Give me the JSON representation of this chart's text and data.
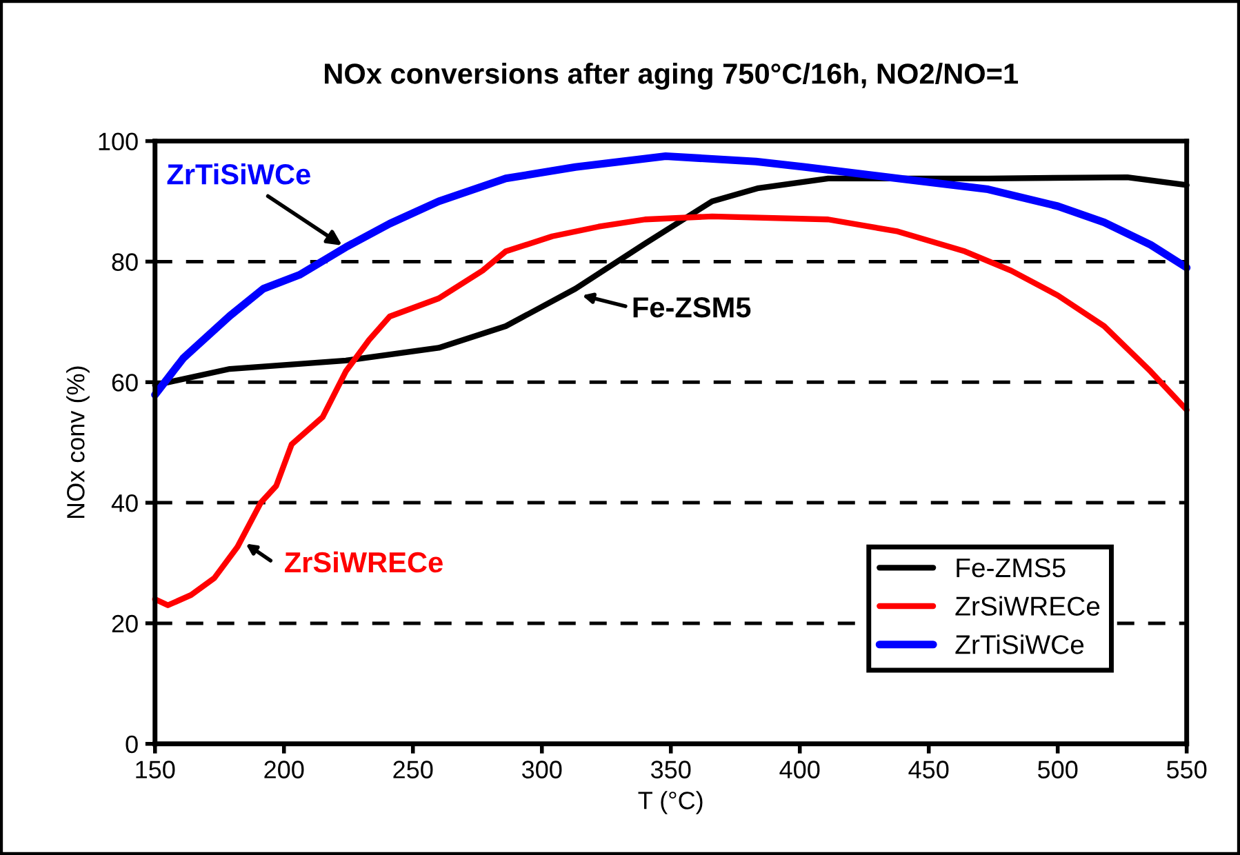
{
  "chart_data": {
    "type": "line",
    "title": "NOx conversions after aging 750°C/16h, NO2/NO=1",
    "xlabel": "T (°C)",
    "ylabel": "NOx conv (%)",
    "xlim": [
      150,
      550
    ],
    "xticks": [
      150,
      200,
      250,
      300,
      350,
      400,
      450,
      500,
      550
    ],
    "ylim": [
      0,
      100
    ],
    "yticks": [
      0,
      20,
      40,
      60,
      80,
      100
    ],
    "grid": "y",
    "legend": "bottom right",
    "marker": "none",
    "line_style": "solid",
    "series": [
      {
        "name": "Fe-ZMS5",
        "color": "#000000",
        "x": [
          150,
          179,
          224,
          260,
          286,
          313,
          340,
          366,
          384,
          411,
          473,
          527,
          550
        ],
        "values": [
          59.5,
          62.2,
          63.6,
          65.7,
          69.3,
          75.5,
          83,
          90,
          92.2,
          93.8,
          93.8,
          94,
          92.7
        ]
      },
      {
        "name": "ZrSiWRECe",
        "color": "#ff0000",
        "x": [
          150,
          155,
          164,
          173,
          182,
          191,
          197,
          203,
          215,
          224,
          233,
          241,
          260,
          277,
          286,
          304,
          322,
          340,
          366,
          411,
          438,
          464,
          482,
          500,
          518,
          536,
          550
        ],
        "values": [
          24,
          23,
          24.7,
          27.5,
          32.7,
          40,
          42.8,
          49.7,
          54.2,
          61.8,
          67,
          70.9,
          73.9,
          78.5,
          81.7,
          84.2,
          85.8,
          87,
          87.5,
          87,
          85,
          81.7,
          78.5,
          74.4,
          69.3,
          61.8,
          55.4
        ]
      },
      {
        "name": "ZrTiSiWCe",
        "color": "#0000ff",
        "x": [
          150,
          161,
          179,
          192,
          206,
          224,
          241,
          260,
          286,
          313,
          348,
          383,
          402,
          438,
          473,
          500,
          518,
          536,
          550
        ],
        "values": [
          57.9,
          64,
          71,
          75.5,
          77.8,
          82.4,
          86.3,
          90,
          93.8,
          95.7,
          97.5,
          96.6,
          95.7,
          93.8,
          92,
          89.2,
          86.5,
          82.8,
          79
        ]
      }
    ],
    "annotations": [
      {
        "text": "ZrTiSiWCe",
        "x": 225,
        "y": 82
      },
      "Fe-ZSM5",
      "ZrSiWRECe"
    ]
  }
}
